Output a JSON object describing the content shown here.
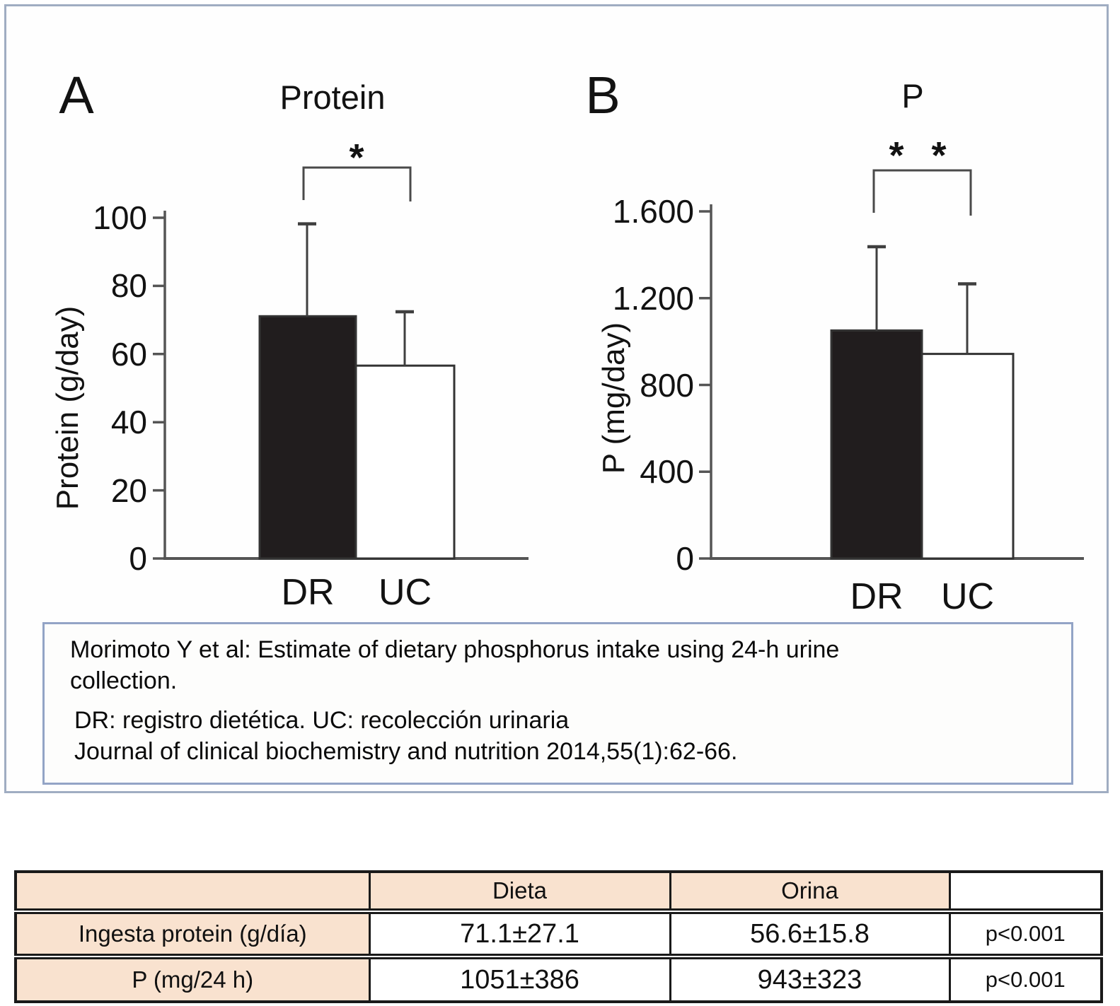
{
  "figure_box": {
    "panel_a": "A",
    "panel_b": "B"
  },
  "chart_data": [
    {
      "type": "bar",
      "panel": "A",
      "title": "Protein",
      "ylabel": "Protein (g/day)",
      "categories": [
        "DR",
        "UC"
      ],
      "values": [
        71.1,
        56.6
      ],
      "errors": [
        27.1,
        15.8
      ],
      "significance": "*",
      "ylim": [
        0,
        100
      ],
      "yticks": [
        0,
        20,
        40,
        60,
        80,
        100
      ],
      "ytick_labels": [
        "0",
        "20",
        "40",
        "60",
        "80",
        "100"
      ],
      "bar_colors": [
        "#211d1e",
        "#ffffff"
      ],
      "grid": "off",
      "legend": "none"
    },
    {
      "type": "bar",
      "panel": "B",
      "title": "P",
      "ylabel": "P (mg/day)",
      "categories": [
        "DR",
        "UC"
      ],
      "values": [
        1051,
        943
      ],
      "errors": [
        386,
        323
      ],
      "significance": "* *",
      "ylim": [
        0,
        1600
      ],
      "yticks": [
        0,
        400,
        800,
        1200,
        1600
      ],
      "ytick_labels": [
        "0",
        "400",
        "800",
        "1.200",
        "1.600"
      ],
      "bar_colors": [
        "#211d1e",
        "#ffffff"
      ],
      "grid": "off",
      "legend": "none"
    }
  ],
  "citation_box": {
    "line1": "Morimoto Y et al: Estimate of dietary phosphorus intake using 24-h urine",
    "line2": "collection.",
    "line3": "DR: registro dietética. UC: recolección urinaria",
    "line4": "Journal of clinical biochemistry and nutrition 2014,55(1):62-66."
  },
  "table": {
    "headers": [
      "",
      "Dieta",
      "Orina",
      ""
    ],
    "rows": [
      [
        "Ingesta protein (g/día)",
        "71.1±27.1",
        "56.6±15.8",
        "p<0.001"
      ],
      [
        "P (mg/24 h)",
        "1051±386",
        "943±323",
        "p<0.001"
      ]
    ]
  },
  "colors": {
    "bar_black": "#211d1e",
    "bar_white": "#ffffff",
    "bar_stroke": "#333333",
    "axis": "#555555",
    "error_bar": "#3f3f3f",
    "bracket": "#4a4a4a",
    "table_header_bg": "#f9e2cf",
    "table_border": "#1a1a1a",
    "outer_border": "#a0adc2",
    "citation_border": "#93a4c6"
  }
}
